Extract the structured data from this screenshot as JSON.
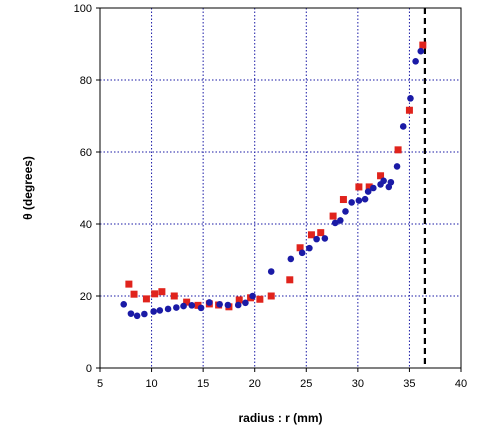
{
  "chart_data": {
    "type": "scatter",
    "title": "",
    "xlabel": "radius : r (mm)",
    "ylabel": "θ (degrees)",
    "xlim": [
      5,
      40
    ],
    "ylim": [
      0,
      100
    ],
    "xticks": [
      5,
      10,
      15,
      20,
      25,
      30,
      35,
      40
    ],
    "yticks": [
      0,
      20,
      40,
      60,
      80,
      100
    ],
    "grid": true,
    "legend": "none",
    "reference_line": {
      "x": 36.5,
      "style": "dashed",
      "color": "#000000"
    },
    "series": [
      {
        "marker": "square",
        "color": "#e0231c",
        "x": [
          7.8,
          8.3,
          9.5,
          10.3,
          11.0,
          12.2,
          13.4,
          14.5,
          15.6,
          16.5,
          17.5,
          18.5,
          19.6,
          20.5,
          21.6,
          23.4,
          24.4,
          25.5,
          26.4,
          27.6,
          28.6,
          30.1,
          31.1,
          32.2,
          33.9,
          35.0,
          36.3
        ],
        "y": [
          23.3,
          20.5,
          19.2,
          20.6,
          21.2,
          20.0,
          18.3,
          17.4,
          17.8,
          17.5,
          17.0,
          18.9,
          19.5,
          19.1,
          20.0,
          24.5,
          33.4,
          37.0,
          37.6,
          42.2,
          46.8,
          50.3,
          50.3,
          53.4,
          60.6,
          71.6,
          89.7
        ]
      },
      {
        "marker": "circle",
        "color": "#1a1aa6",
        "x": [
          7.3,
          8.0,
          8.6,
          9.3,
          10.2,
          10.8,
          11.6,
          12.4,
          13.1,
          13.9,
          14.8,
          15.6,
          16.6,
          17.4,
          18.4,
          19.1,
          19.8,
          21.6,
          23.5,
          24.6,
          25.3,
          26.0,
          26.8,
          27.8,
          28.3,
          28.8,
          29.4,
          30.1,
          30.7,
          31.0,
          31.5,
          32.2,
          32.5,
          33.0,
          33.2,
          33.8,
          34.4,
          35.1,
          35.6,
          36.1
        ],
        "y": [
          17.7,
          15.1,
          14.5,
          15.0,
          15.7,
          16.0,
          16.4,
          16.8,
          17.2,
          17.4,
          16.7,
          18.2,
          17.7,
          17.5,
          17.5,
          18.1,
          20.0,
          26.8,
          30.3,
          32.0,
          33.3,
          35.8,
          36.0,
          40.3,
          41.0,
          43.5,
          46.0,
          46.5,
          46.9,
          49.0,
          50.0,
          51.0,
          52.0,
          50.3,
          51.6,
          56.0,
          67.1,
          74.9,
          85.2,
          88.0
        ]
      }
    ]
  }
}
